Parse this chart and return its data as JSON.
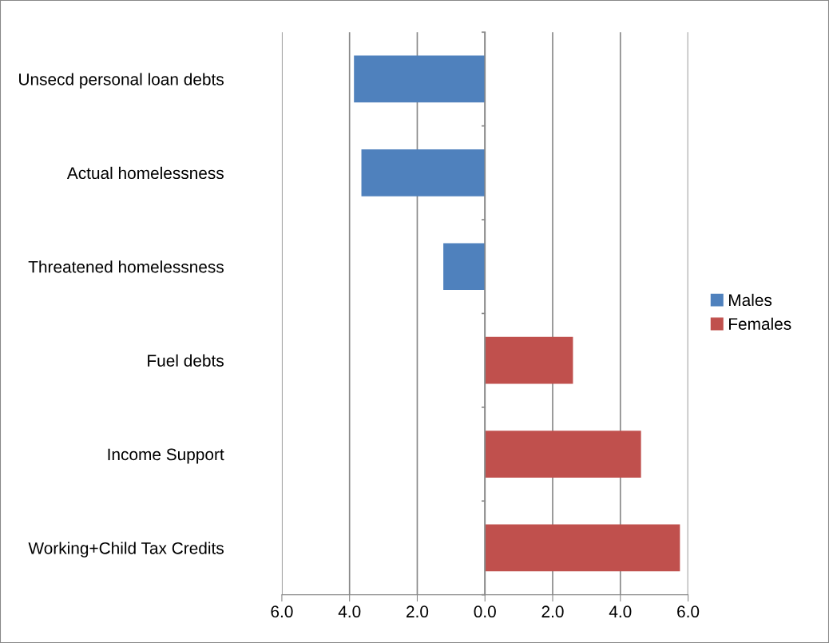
{
  "chart_data": {
    "type": "bar",
    "orientation": "horizontal",
    "categories": [
      "Unsecd personal loan debts",
      "Actual homelessness",
      "Threatened homelessness",
      "Fuel debts",
      "Income Support",
      "Working+Child Tax Credits"
    ],
    "series": [
      {
        "name": "Males",
        "color": "#4f81bd",
        "values": [
          -3.87,
          -3.65,
          -1.23,
          null,
          null,
          null
        ]
      },
      {
        "name": "Females",
        "color": "#c0504d",
        "values": [
          null,
          null,
          null,
          2.6,
          4.61,
          5.76
        ]
      }
    ],
    "xlim": [
      -6,
      6
    ],
    "xticks": [
      {
        "value": -6,
        "label": "6.0"
      },
      {
        "value": -4,
        "label": "4.0"
      },
      {
        "value": -2,
        "label": "2.0"
      },
      {
        "value": 0,
        "label": "0.0"
      },
      {
        "value": 2,
        "label": "2.0"
      },
      {
        "value": 4,
        "label": "4.0"
      },
      {
        "value": 6,
        "label": "6.0"
      }
    ],
    "grid": "x",
    "legend": "right"
  }
}
